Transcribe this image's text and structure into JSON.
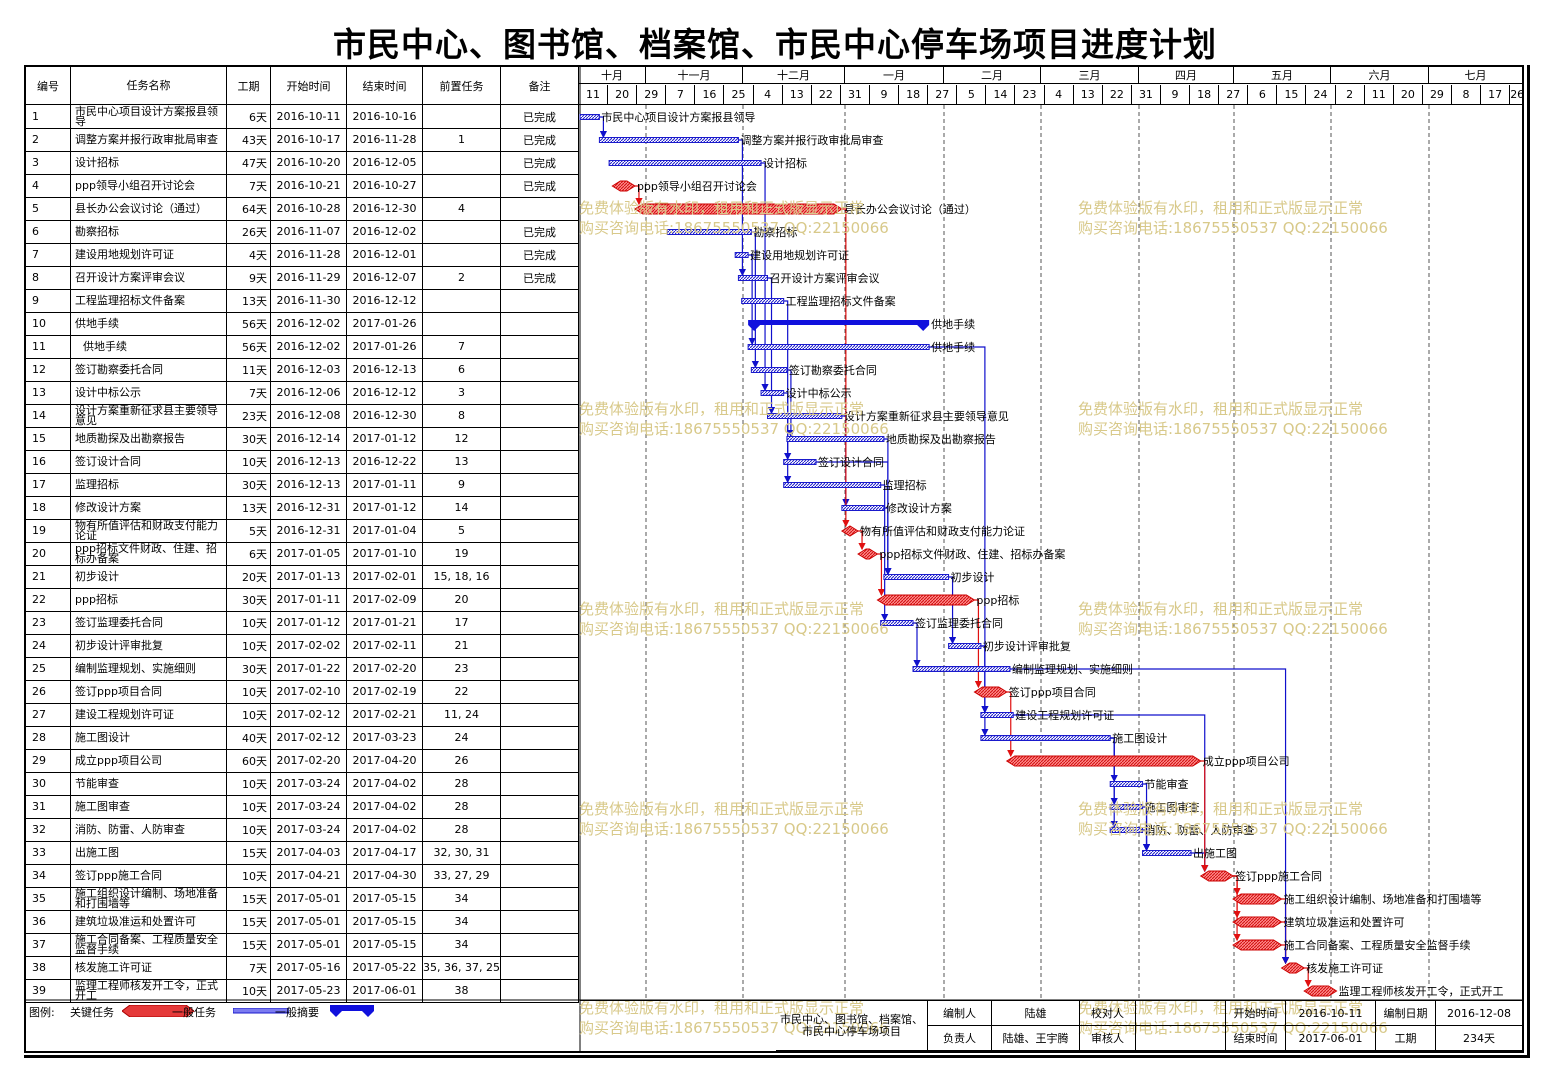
{
  "title": "市民中心、图书馆、档案馆、市民中心停车场项目进度计划",
  "columns": {
    "id": "编号",
    "name": "任务名称",
    "dur": "工期",
    "start": "开始时间",
    "end": "结束时间",
    "pred": "前置任务",
    "note": "备注"
  },
  "months": [
    "十月",
    "十一月",
    "十二月",
    "一月",
    "二月",
    "三月",
    "四月",
    "五月",
    "六月",
    "七月"
  ],
  "ticks": [
    "11",
    "20",
    "29",
    "7",
    "16",
    "25",
    "4",
    "13",
    "22",
    "31",
    "9",
    "18",
    "27",
    "5",
    "14",
    "23",
    "4",
    "13",
    "22",
    "31",
    "9",
    "18",
    "27",
    "6",
    "15",
    "24",
    "2",
    "11",
    "20",
    "29",
    "8",
    "17",
    "26"
  ],
  "tasks": [
    {
      "id": "1",
      "name": "市民中心项目设计方案报县领导",
      "dur": "6天",
      "start": "2016-10-11",
      "end": "2016-10-16",
      "pred": "",
      "note": "已完成",
      "label": "市民中心项目设计方案报县领导",
      "kind": "normal"
    },
    {
      "id": "2",
      "name": "调整方案并报行政审批局审查",
      "dur": "43天",
      "start": "2016-10-17",
      "end": "2016-11-28",
      "pred": "1",
      "note": "已完成",
      "label": "调整方案并报行政审批局审查",
      "kind": "normal"
    },
    {
      "id": "3",
      "name": "设计招标",
      "dur": "47天",
      "start": "2016-10-20",
      "end": "2016-12-05",
      "pred": "",
      "note": "已完成",
      "label": "设计招标",
      "kind": "normal"
    },
    {
      "id": "4",
      "name": "ppp领导小组召开讨论会",
      "dur": "7天",
      "start": "2016-10-21",
      "end": "2016-10-27",
      "pred": "",
      "note": "已完成",
      "label": "ppp领导小组召开讨论会",
      "kind": "critical"
    },
    {
      "id": "5",
      "name": "县长办公会议讨论（通过）",
      "dur": "64天",
      "start": "2016-10-28",
      "end": "2016-12-30",
      "pred": "4",
      "note": "",
      "label": "县长办公会议讨论（通过）",
      "kind": "critical"
    },
    {
      "id": "6",
      "name": "勘察招标",
      "dur": "26天",
      "start": "2016-11-07",
      "end": "2016-12-02",
      "pred": "",
      "note": "已完成",
      "label": "勘察招标",
      "kind": "normal"
    },
    {
      "id": "7",
      "name": "建设用地规划许可证",
      "dur": "4天",
      "start": "2016-11-28",
      "end": "2016-12-01",
      "pred": "",
      "note": "已完成",
      "label": "建设用地规划许可证",
      "kind": "normal"
    },
    {
      "id": "8",
      "name": "召开设计方案评审会议",
      "dur": "9天",
      "start": "2016-11-29",
      "end": "2016-12-07",
      "pred": "2",
      "note": "已完成",
      "label": "召开设计方案评审会议",
      "kind": "normal"
    },
    {
      "id": "9",
      "name": "工程监理招标文件备案",
      "dur": "13天",
      "start": "2016-11-30",
      "end": "2016-12-12",
      "pred": "",
      "note": "",
      "label": "工程监理招标文件备案",
      "kind": "normal"
    },
    {
      "id": "10",
      "name": "供地手续",
      "dur": "56天",
      "start": "2016-12-02",
      "end": "2017-01-26",
      "pred": "",
      "note": "",
      "label": "供地手续",
      "kind": "summary"
    },
    {
      "id": "11",
      "name": "供地手续",
      "dur": "56天",
      "start": "2016-12-02",
      "end": "2017-01-26",
      "pred": "7",
      "note": "",
      "label": "供地手续",
      "kind": "normal",
      "indent": true
    },
    {
      "id": "12",
      "name": "签订勘察委托合同",
      "dur": "11天",
      "start": "2016-12-03",
      "end": "2016-12-13",
      "pred": "6",
      "note": "",
      "label": "签订勘察委托合同",
      "kind": "normal"
    },
    {
      "id": "13",
      "name": "设计中标公示",
      "dur": "7天",
      "start": "2016-12-06",
      "end": "2016-12-12",
      "pred": "3",
      "note": "",
      "label": "设计中标公示",
      "kind": "normal"
    },
    {
      "id": "14",
      "name": "设计方案重新征求县主要领导意见",
      "dur": "23天",
      "start": "2016-12-08",
      "end": "2016-12-30",
      "pred": "8",
      "note": "",
      "label": "设计方案重新征求县主要领导意见",
      "kind": "normal"
    },
    {
      "id": "15",
      "name": "地质勘探及出勘察报告",
      "dur": "30天",
      "start": "2016-12-14",
      "end": "2017-01-12",
      "pred": "12",
      "note": "",
      "label": "地质勘探及出勘察报告",
      "kind": "normal"
    },
    {
      "id": "16",
      "name": "签订设计合同",
      "dur": "10天",
      "start": "2016-12-13",
      "end": "2016-12-22",
      "pred": "13",
      "note": "",
      "label": "签订设计合同",
      "kind": "normal"
    },
    {
      "id": "17",
      "name": "监理招标",
      "dur": "30天",
      "start": "2016-12-13",
      "end": "2017-01-11",
      "pred": "9",
      "note": "",
      "label": "监理招标",
      "kind": "normal"
    },
    {
      "id": "18",
      "name": "修改设计方案",
      "dur": "13天",
      "start": "2016-12-31",
      "end": "2017-01-12",
      "pred": "14",
      "note": "",
      "label": "修改设计方案",
      "kind": "normal"
    },
    {
      "id": "19",
      "name": "物有所值评估和财政支付能力论证",
      "dur": "5天",
      "start": "2016-12-31",
      "end": "2017-01-04",
      "pred": "5",
      "note": "",
      "label": "物有所值评估和财政支付能力论证",
      "kind": "critical"
    },
    {
      "id": "20",
      "name": "ppp招标文件财政、住建、招标办备案",
      "dur": "6天",
      "start": "2017-01-05",
      "end": "2017-01-10",
      "pred": "19",
      "note": "",
      "label": "ppp招标文件财政、住建、招标办备案",
      "kind": "critical"
    },
    {
      "id": "21",
      "name": "初步设计",
      "dur": "20天",
      "start": "2017-01-13",
      "end": "2017-02-01",
      "pred": "15, 18, 16",
      "note": "",
      "label": "初步设计",
      "kind": "normal"
    },
    {
      "id": "22",
      "name": "ppp招标",
      "dur": "30天",
      "start": "2017-01-11",
      "end": "2017-02-09",
      "pred": "20",
      "note": "",
      "label": "ppp招标",
      "kind": "critical"
    },
    {
      "id": "23",
      "name": "签订监理委托合同",
      "dur": "10天",
      "start": "2017-01-12",
      "end": "2017-01-21",
      "pred": "17",
      "note": "",
      "label": "签订监理委托合同",
      "kind": "normal"
    },
    {
      "id": "24",
      "name": "初步设计评审批复",
      "dur": "10天",
      "start": "2017-02-02",
      "end": "2017-02-11",
      "pred": "21",
      "note": "",
      "label": "初步设计评审批复",
      "kind": "normal"
    },
    {
      "id": "25",
      "name": "编制监理规划、实施细则",
      "dur": "30天",
      "start": "2017-01-22",
      "end": "2017-02-20",
      "pred": "23",
      "note": "",
      "label": "编制监理规划、实施细则",
      "kind": "normal"
    },
    {
      "id": "26",
      "name": "签订ppp项目合同",
      "dur": "10天",
      "start": "2017-02-10",
      "end": "2017-02-19",
      "pred": "22",
      "note": "",
      "label": "签订ppp项目合同",
      "kind": "critical"
    },
    {
      "id": "27",
      "name": "建设工程规划许可证",
      "dur": "10天",
      "start": "2017-02-12",
      "end": "2017-02-21",
      "pred": "11, 24",
      "note": "",
      "label": "建设工程规划许可证",
      "kind": "normal"
    },
    {
      "id": "28",
      "name": "施工图设计",
      "dur": "40天",
      "start": "2017-02-12",
      "end": "2017-03-23",
      "pred": "24",
      "note": "",
      "label": "施工图设计",
      "kind": "normal"
    },
    {
      "id": "29",
      "name": "成立ppp项目公司",
      "dur": "60天",
      "start": "2017-02-20",
      "end": "2017-04-20",
      "pred": "26",
      "note": "",
      "label": "成立ppp项目公司",
      "kind": "critical"
    },
    {
      "id": "30",
      "name": "节能审查",
      "dur": "10天",
      "start": "2017-03-24",
      "end": "2017-04-02",
      "pred": "28",
      "note": "",
      "label": "节能审查",
      "kind": "normal"
    },
    {
      "id": "31",
      "name": "施工图审查",
      "dur": "10天",
      "start": "2017-03-24",
      "end": "2017-04-02",
      "pred": "28",
      "note": "",
      "label": "施工图审查",
      "kind": "normal"
    },
    {
      "id": "32",
      "name": "消防、防雷、人防审查",
      "dur": "10天",
      "start": "2017-03-24",
      "end": "2017-04-02",
      "pred": "28",
      "note": "",
      "label": "消防、防雷、人防审查",
      "kind": "normal"
    },
    {
      "id": "33",
      "name": "出施工图",
      "dur": "15天",
      "start": "2017-04-03",
      "end": "2017-04-17",
      "pred": "32, 30, 31",
      "note": "",
      "label": "出施工图",
      "kind": "normal"
    },
    {
      "id": "34",
      "name": "签订ppp施工合同",
      "dur": "10天",
      "start": "2017-04-21",
      "end": "2017-04-30",
      "pred": "33, 27, 29",
      "note": "",
      "label": "签订ppp施工合同",
      "kind": "critical"
    },
    {
      "id": "35",
      "name": "施工组织设计编制、场地准备和打围墙等",
      "dur": "15天",
      "start": "2017-05-01",
      "end": "2017-05-15",
      "pred": "34",
      "note": "",
      "label": "施工组织设计编制、场地准备和打围墙等",
      "kind": "critical"
    },
    {
      "id": "36",
      "name": "建筑垃圾准运和处置许可",
      "dur": "15天",
      "start": "2017-05-01",
      "end": "2017-05-15",
      "pred": "34",
      "note": "",
      "label": "建筑垃圾准运和处置许可",
      "kind": "critical"
    },
    {
      "id": "37",
      "name": "施工合同备案、工程质量安全监督手续",
      "dur": "15天",
      "start": "2017-05-01",
      "end": "2017-05-15",
      "pred": "34",
      "note": "",
      "label": "施工合同备案、工程质量安全监督手续",
      "kind": "critical"
    },
    {
      "id": "38",
      "name": "核发施工许可证",
      "dur": "7天",
      "start": "2017-05-16",
      "end": "2017-05-22",
      "pred": "35, 36, 37, 25",
      "note": "",
      "label": "核发施工许可证",
      "kind": "critical"
    },
    {
      "id": "39",
      "name": "监理工程师核发开工令，正式开工",
      "dur": "10天",
      "start": "2017-05-23",
      "end": "2017-06-01",
      "pred": "38",
      "note": "",
      "label": "监理工程师核发开工令，正式开工",
      "kind": "critical"
    }
  ],
  "legend": {
    "title": "图例:",
    "critical": "关键任务",
    "normal": "一般任务",
    "summary": "一般摘要"
  },
  "watermark": {
    "line1": "免费体验版有水印，租用和正式版显示正常",
    "line2": "购买咨询电话:18675550537 QQ:22150066"
  },
  "footer": {
    "project": "市民中心、图书馆、档案馆、市民中心停车场项目",
    "editor_label": "编制人",
    "editor": "陆雄",
    "checker_label": "校对人",
    "checker": "",
    "start_label": "开始时间",
    "start": "2016-10-11",
    "date_label": "编制日期",
    "date": "2016-12-08",
    "owner_label": "负责人",
    "owner": "陆雄、王宇腾",
    "reviewer_label": "审核人",
    "reviewer": "",
    "end_label": "结束时间",
    "end": "2017-06-01",
    "dur_label": "工期",
    "dur": "234天"
  },
  "colors": {
    "critical": "#e53a3a",
    "normal": "#1a1acc",
    "summary": "#1010dd",
    "link_blue": "#1010cc",
    "link_red": "#e01010",
    "watermark": "#d8c98a"
  }
}
